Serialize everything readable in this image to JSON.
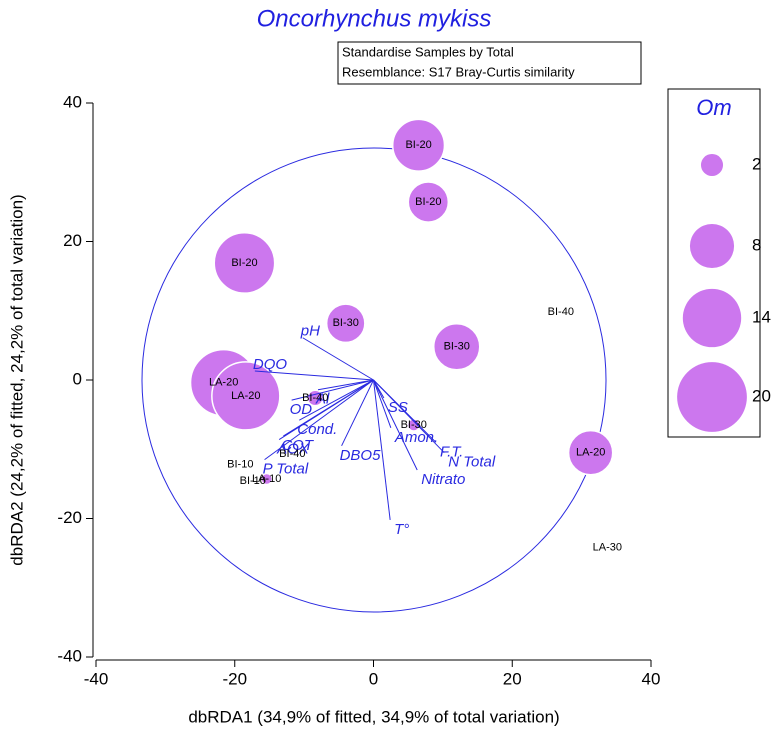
{
  "chart_data": {
    "type": "bubble",
    "title": "Oncorhynchus mykiss",
    "notes": [
      "Standardise Samples by Total",
      "Resemblance: S17 Bray-Curtis similarity"
    ],
    "xlabel": "dbRDA1 (34,9% of fitted, 34,9% of total variation)",
    "ylabel": "dbRDA2 (24,2% of fitted, 24,2% of total variation)",
    "xlim": [
      -40,
      40
    ],
    "ylim": [
      -40,
      40
    ],
    "xticks": [
      -40,
      -20,
      0,
      20,
      40
    ],
    "yticks": [
      -40,
      -20,
      0,
      20,
      40
    ],
    "color": "#cc77ee",
    "size_label": "Om",
    "legend_sizes": [
      2,
      8,
      14,
      20
    ],
    "points": [
      {
        "label": "BI-20",
        "x": 6.5,
        "y": 33.9,
        "size": 11
      },
      {
        "label": "BI-20",
        "x": 7.9,
        "y": 25.7,
        "size": 6.6
      },
      {
        "label": "BI-20",
        "x": -18.6,
        "y": 16.9,
        "size": 15
      },
      {
        "label": "BI-30",
        "x": -4,
        "y": 8.2,
        "size": 6
      },
      {
        "label": "BI-30",
        "x": 12,
        "y": 4.8,
        "size": 8.7
      },
      {
        "label": "BI-40",
        "x": 27,
        "y": 9.8,
        "size": 0
      },
      {
        "label": "LA-20",
        "x": -21.6,
        "y": -0.4,
        "size": 18
      },
      {
        "label": "LA-20",
        "x": -18.4,
        "y": -2.3,
        "size": 19
      },
      {
        "label": "LA-20",
        "x": 31.3,
        "y": -10.5,
        "size": 8
      },
      {
        "label": "LA-30",
        "x": 33.7,
        "y": -24.2,
        "size": 0
      },
      {
        "label": "BI-40",
        "x": -8.4,
        "y": -2.6,
        "size": 1
      },
      {
        "label": "BI-30",
        "x": 5.8,
        "y": -6.5,
        "size": 0.6
      },
      {
        "label": "BI-40",
        "x": -11.7,
        "y": -10.7,
        "size": 0
      },
      {
        "label": "BI-10",
        "x": -19.2,
        "y": -12.2,
        "size": 0
      },
      {
        "label": "LA-10",
        "x": -15.4,
        "y": -14.3,
        "size": 0.5
      },
      {
        "label": "BI-10",
        "x": -17.4,
        "y": -14.6,
        "size": 0
      }
    ],
    "vector_color": "#2a2ae0",
    "vectors": [
      {
        "name": "pH",
        "x": -10.2,
        "y": 6.1
      },
      {
        "name": "DQO",
        "x": -17.1,
        "y": 1.3
      },
      {
        "name": "Al",
        "x": -8,
        "y": -1.4
      },
      {
        "name": "OD",
        "x": -11.8,
        "y": -2.9
      },
      {
        "name": "Cond.",
        "x": -10.7,
        "y": -5.8
      },
      {
        "name": "COT",
        "x": -13,
        "y": -8.1
      },
      {
        "name": "AOX",
        "x": -13.6,
        "y": -8.6
      },
      {
        "name": "P Total",
        "x": -15.7,
        "y": -11.5
      },
      {
        "name": "DBO5",
        "x": -4.6,
        "y": -9.5
      },
      {
        "name": "SS",
        "x": 1.5,
        "y": -2.6
      },
      {
        "name": "Amon.",
        "x": 2.5,
        "y": -6.9
      },
      {
        "name": "F.T.",
        "x": 9,
        "y": -9
      },
      {
        "name": "N Total",
        "x": 10.2,
        "y": -10.5
      },
      {
        "name": "Nitrato",
        "x": 6.3,
        "y": -13
      },
      {
        "name": "T°",
        "x": 2.4,
        "y": -20.2
      }
    ]
  }
}
